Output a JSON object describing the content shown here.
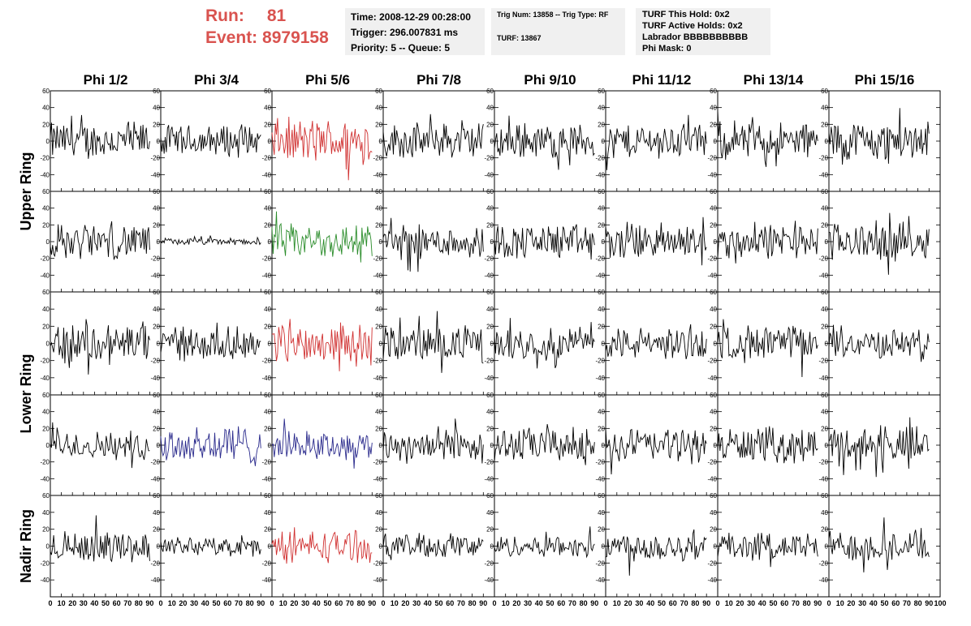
{
  "header": {
    "run_label": "Run:",
    "run_value": "81",
    "event_label": "Event:",
    "event_value": "8979158"
  },
  "info_panel": {
    "time": "Time: 2008-12-29 00:28:00",
    "trigger": "Trigger: 296.007831 ms",
    "priority": "Priority: 5 -- Queue: 5",
    "trig_num": "Trig Num: 13858 -- Trig Type: RF",
    "turf": "TURF: 13867",
    "turf_this_hold": "TURF This Hold: 0x2",
    "turf_active_holds": "TURF Active Holds: 0x2",
    "labrador": "Labrador BBBBBBBBBB",
    "phi_mask": "Phi Mask: 0"
  },
  "chart_data": {
    "type": "line",
    "columns": [
      "Phi 1/2",
      "Phi 3/4",
      "Phi 5/6",
      "Phi 7/8",
      "Phi 9/10",
      "Phi 11/12",
      "Phi 13/14",
      "Phi 15/16"
    ],
    "row_groups": [
      {
        "label": "Upper Ring",
        "rows": [
          0,
          1
        ]
      },
      {
        "label": "Lower Ring",
        "rows": [
          2,
          3
        ]
      },
      {
        "label": "Nadir Ring",
        "rows": [
          4
        ]
      }
    ],
    "xlim": [
      0,
      100
    ],
    "x_ticks": [
      0,
      10,
      20,
      30,
      40,
      50,
      60,
      70,
      80,
      90,
      100
    ],
    "ylim": [
      -60,
      60
    ],
    "y_ticks": [
      -60,
      -40,
      -20,
      0,
      20,
      40,
      60
    ],
    "y_tick_labels": [
      "-40",
      "-20",
      "0",
      "20",
      "40",
      "60"
    ],
    "samples": 90,
    "colors": {
      "default": "#000000",
      "red": "#d03030",
      "green": "#2a8c2a",
      "blue": "#2a2a8c"
    },
    "series_colors": [
      [
        "default",
        "default",
        "red",
        "default",
        "default",
        "default",
        "default",
        "default"
      ],
      [
        "default",
        "default",
        "green",
        "default",
        "default",
        "default",
        "default",
        "default"
      ],
      [
        "default",
        "default",
        "red",
        "default",
        "default",
        "default",
        "default",
        "default"
      ],
      [
        "default",
        "blue",
        "blue",
        "default",
        "default",
        "default",
        "default",
        "default"
      ],
      [
        "default",
        "default",
        "red",
        "default",
        "default",
        "default",
        "default",
        "default"
      ]
    ],
    "amplitudes": [
      [
        22,
        18,
        26,
        20,
        20,
        20,
        22,
        24
      ],
      [
        20,
        4,
        20,
        20,
        20,
        22,
        20,
        22
      ],
      [
        24,
        18,
        22,
        20,
        18,
        18,
        20,
        16
      ],
      [
        16,
        24,
        16,
        20,
        20,
        20,
        20,
        22
      ],
      [
        18,
        10,
        18,
        14,
        12,
        18,
        16,
        18
      ]
    ]
  }
}
